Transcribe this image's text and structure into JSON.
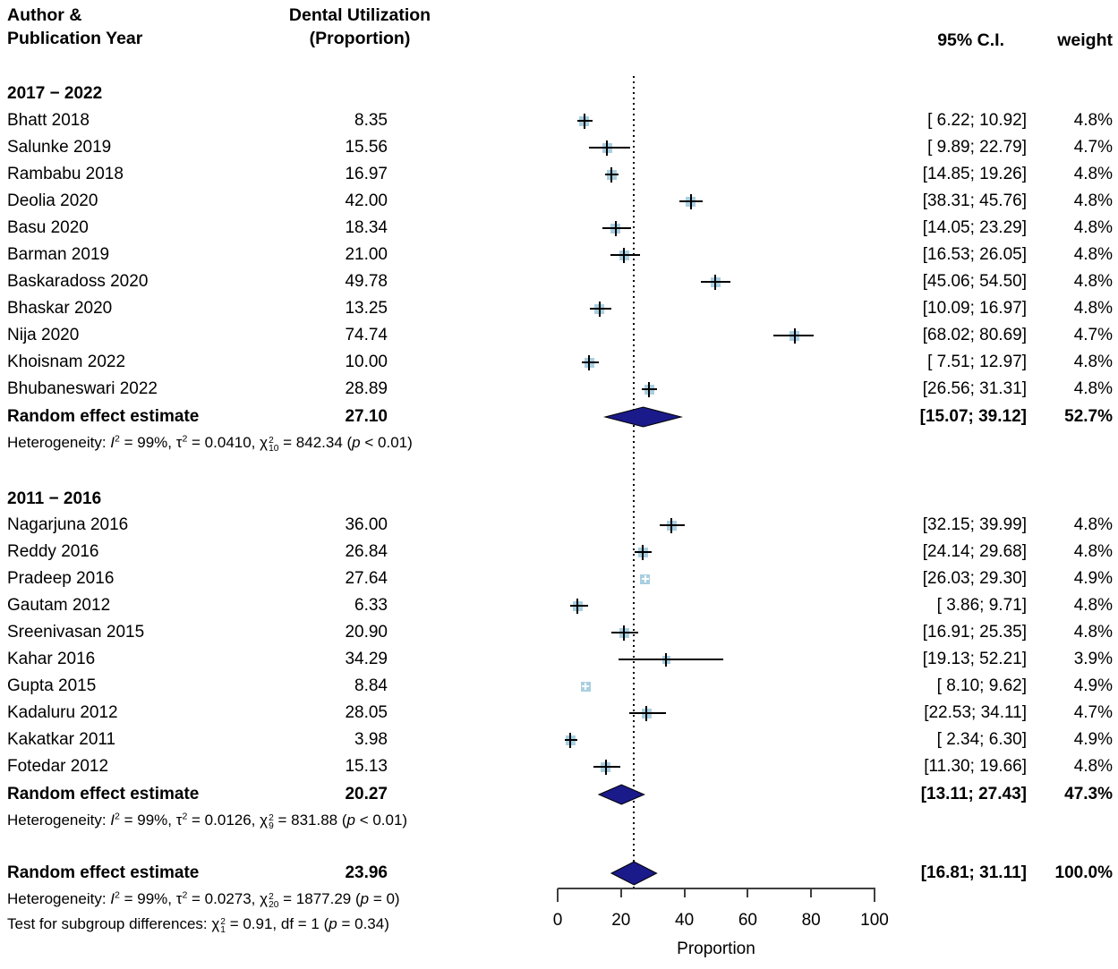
{
  "header": {
    "author_line1": "Author &",
    "author_line2": "Publication Year",
    "effect_line1": "Dental Utilization",
    "effect_line2": "(Proportion)",
    "ci": "95% C.I.",
    "weight": "weight"
  },
  "chart_data": {
    "type": "forest",
    "xlabel": "Proportion",
    "xlim": [
      0,
      100
    ],
    "x_ticks": [
      0,
      20,
      40,
      60,
      80,
      100
    ],
    "reference_line": 23.96,
    "colors": {
      "square": "#a9cfe0",
      "diamond": "#1a1a8a",
      "ci_line": "#000000",
      "axis": "#3f3f3f"
    },
    "groups": [
      {
        "label": "2017 − 2022",
        "studies": [
          {
            "name": "Bhatt 2018",
            "est": 8.35,
            "est_text": "8.35",
            "lo": 6.22,
            "hi": 10.92,
            "ci_text": "[ 6.22; 10.92]",
            "weight": 4.8,
            "weight_text": "4.8%"
          },
          {
            "name": "Salunke 2019",
            "est": 15.56,
            "est_text": "15.56",
            "lo": 9.89,
            "hi": 22.79,
            "ci_text": "[ 9.89; 22.79]",
            "weight": 4.7,
            "weight_text": "4.7%"
          },
          {
            "name": "Rambabu 2018",
            "est": 16.97,
            "est_text": "16.97",
            "lo": 14.85,
            "hi": 19.26,
            "ci_text": "[14.85; 19.26]",
            "weight": 4.8,
            "weight_text": "4.8%"
          },
          {
            "name": "Deolia 2020",
            "est": 42.0,
            "est_text": "42.00",
            "lo": 38.31,
            "hi": 45.76,
            "ci_text": "[38.31; 45.76]",
            "weight": 4.8,
            "weight_text": "4.8%"
          },
          {
            "name": "Basu 2020",
            "est": 18.34,
            "est_text": "18.34",
            "lo": 14.05,
            "hi": 23.29,
            "ci_text": "[14.05; 23.29]",
            "weight": 4.8,
            "weight_text": "4.8%"
          },
          {
            "name": "Barman 2019",
            "est": 21.0,
            "est_text": "21.00",
            "lo": 16.53,
            "hi": 26.05,
            "ci_text": "[16.53; 26.05]",
            "weight": 4.8,
            "weight_text": "4.8%"
          },
          {
            "name": "Baskaradoss 2020",
            "est": 49.78,
            "est_text": "49.78",
            "lo": 45.06,
            "hi": 54.5,
            "ci_text": "[45.06; 54.50]",
            "weight": 4.8,
            "weight_text": "4.8%"
          },
          {
            "name": "Bhaskar 2020",
            "est": 13.25,
            "est_text": "13.25",
            "lo": 10.09,
            "hi": 16.97,
            "ci_text": "[10.09; 16.97]",
            "weight": 4.8,
            "weight_text": "4.8%"
          },
          {
            "name": "Nija 2020",
            "est": 74.74,
            "est_text": "74.74",
            "lo": 68.02,
            "hi": 80.69,
            "ci_text": "[68.02; 80.69]",
            "weight": 4.7,
            "weight_text": "4.7%"
          },
          {
            "name": "Khoisnam 2022",
            "est": 10.0,
            "est_text": "10.00",
            "lo": 7.51,
            "hi": 12.97,
            "ci_text": "[ 7.51; 12.97]",
            "weight": 4.8,
            "weight_text": "4.8%"
          },
          {
            "name": "Bhubaneswari 2022",
            "est": 28.89,
            "est_text": "28.89",
            "lo": 26.56,
            "hi": 31.31,
            "ci_text": "[26.56; 31.31]",
            "weight": 4.8,
            "weight_text": "4.8%"
          }
        ],
        "summary": {
          "label": "Random effect estimate",
          "est": 27.1,
          "est_text": "27.10",
          "lo": 15.07,
          "hi": 39.12,
          "ci_text": "[15.07; 39.12]",
          "weight_text": "52.7%"
        },
        "heterogeneity": {
          "i2": "99%",
          "tau2": "0.0410",
          "chi_df": "10",
          "chi_val": "842.34",
          "p_text": "p < 0.01"
        }
      },
      {
        "label": "2011 − 2016",
        "studies": [
          {
            "name": "Nagarjuna 2016",
            "est": 36.0,
            "est_text": "36.00",
            "lo": 32.15,
            "hi": 39.99,
            "ci_text": "[32.15; 39.99]",
            "weight": 4.8,
            "weight_text": "4.8%"
          },
          {
            "name": "Reddy 2016",
            "est": 26.84,
            "est_text": "26.84",
            "lo": 24.14,
            "hi": 29.68,
            "ci_text": "[24.14; 29.68]",
            "weight": 4.8,
            "weight_text": "4.8%"
          },
          {
            "name": "Pradeep 2016",
            "est": 27.64,
            "est_text": "27.64",
            "lo": 26.03,
            "hi": 29.3,
            "ci_text": "[26.03; 29.30]",
            "weight": 4.9,
            "weight_text": "4.9%"
          },
          {
            "name": "Gautam 2012",
            "est": 6.33,
            "est_text": "6.33",
            "lo": 3.86,
            "hi": 9.71,
            "ci_text": "[ 3.86;  9.71]",
            "weight": 4.8,
            "weight_text": "4.8%"
          },
          {
            "name": "Sreenivasan 2015",
            "est": 20.9,
            "est_text": "20.90",
            "lo": 16.91,
            "hi": 25.35,
            "ci_text": "[16.91; 25.35]",
            "weight": 4.8,
            "weight_text": "4.8%"
          },
          {
            "name": "Kahar 2016",
            "est": 34.29,
            "est_text": "34.29",
            "lo": 19.13,
            "hi": 52.21,
            "ci_text": "[19.13; 52.21]",
            "weight": 3.9,
            "weight_text": "3.9%"
          },
          {
            "name": "Gupta 2015",
            "est": 8.84,
            "est_text": "8.84",
            "lo": 8.1,
            "hi": 9.62,
            "ci_text": "[ 8.10;  9.62]",
            "weight": 4.9,
            "weight_text": "4.9%"
          },
          {
            "name": "Kadaluru 2012",
            "est": 28.05,
            "est_text": "28.05",
            "lo": 22.53,
            "hi": 34.11,
            "ci_text": "[22.53; 34.11]",
            "weight": 4.7,
            "weight_text": "4.7%"
          },
          {
            "name": "Kakatkar 2011",
            "est": 3.98,
            "est_text": "3.98",
            "lo": 2.34,
            "hi": 6.3,
            "ci_text": "[ 2.34;  6.30]",
            "weight": 4.9,
            "weight_text": "4.9%"
          },
          {
            "name": "Fotedar 2012",
            "est": 15.13,
            "est_text": "15.13",
            "lo": 11.3,
            "hi": 19.66,
            "ci_text": "[11.30; 19.66]",
            "weight": 4.8,
            "weight_text": "4.8%"
          }
        ],
        "summary": {
          "label": "Random effect estimate",
          "est": 20.27,
          "est_text": "20.27",
          "lo": 13.11,
          "hi": 27.43,
          "ci_text": "[13.11; 27.43]",
          "weight_text": "47.3%"
        },
        "heterogeneity": {
          "i2": "99%",
          "tau2": "0.0126",
          "chi_df": "9",
          "chi_val": "831.88",
          "p_text": "p < 0.01"
        }
      }
    ],
    "overall": {
      "summary": {
        "label": "Random effect estimate",
        "est": 23.96,
        "est_text": "23.96",
        "lo": 16.81,
        "hi": 31.11,
        "ci_text": "[16.81; 31.11]",
        "weight_text": "100.0%"
      },
      "heterogeneity": {
        "i2": "99%",
        "tau2": "0.0273",
        "chi_df": "20",
        "chi_val": "1877.29",
        "p_text": "p = 0"
      },
      "subgroup_test": {
        "prefix": "Test for subgroup differences:",
        "chi_df": "1",
        "chi_val": "0.91",
        "df_text": "df = 1",
        "p_text": "p = 0.34"
      }
    }
  }
}
